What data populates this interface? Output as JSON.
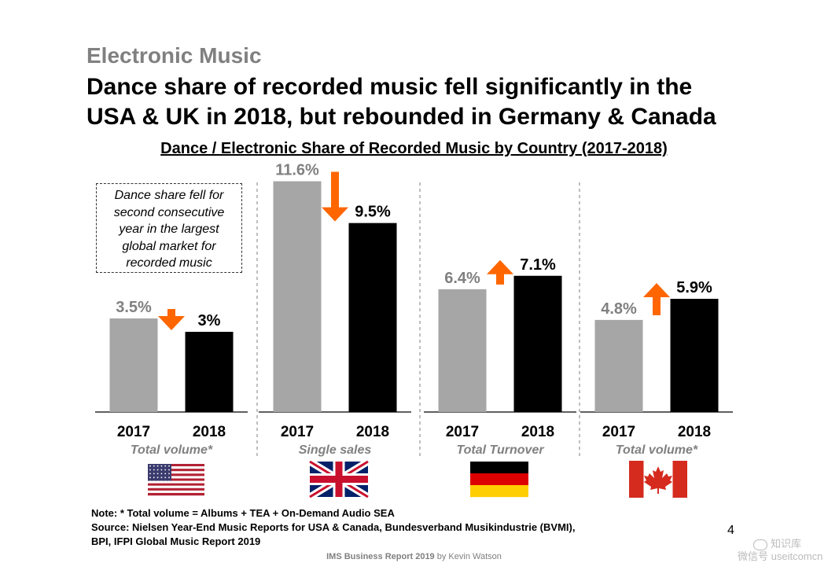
{
  "section_title": "Electronic Music",
  "headline_line1": "Dance share of recorded music fell significantly in the",
  "headline_line2": "USA & UK in 2018, but rebounded in Germany & Canada",
  "annotation_lines": [
    "Dance share fell for",
    "second consecutive",
    "year in the largest",
    "global market for",
    "recorded music"
  ],
  "note": "Note: * Total volume = Albums + TEA + On-Demand Audio SEA",
  "source_line1": "Source: Nielsen Year-End Music Reports for USA & Canada, Bundesverband Musikindustrie (BVMI),",
  "source_line2": "BPI, IFPI Global Music Report 2019",
  "page_number": "4",
  "footer": {
    "bold": "IMS Business Report 2019",
    "rest": " by Kevin Watson"
  },
  "watermark": {
    "line1": "知识库",
    "line2": "微信号 useitcomcn"
  },
  "colors": {
    "bar_2017": "#a6a6a6",
    "bar_2018": "#000000",
    "arrow": "#ff6600",
    "label_2017": "#808080",
    "metric_label": "#808080"
  },
  "chart_data": {
    "type": "bar",
    "title": "Dance / Electronic Share of Recorded Music by Country (2017-2018)",
    "categories": [
      "2017",
      "2018"
    ],
    "unit": "%",
    "groups": [
      {
        "flag": "usa-flag",
        "metric": "Total volume*",
        "values": [
          3.5,
          3.0
        ],
        "labels": [
          "3.5%",
          "3%"
        ],
        "trend": "down"
      },
      {
        "flag": "uk-flag",
        "metric": "Single sales",
        "values": [
          11.6,
          9.5
        ],
        "labels": [
          "11.6%",
          "9.5%"
        ],
        "trend": "down"
      },
      {
        "flag": "germany-flag",
        "metric": "Total Turnover",
        "values": [
          6.4,
          7.1
        ],
        "labels": [
          "6.4%",
          "7.1%"
        ],
        "trend": "up"
      },
      {
        "flag": "canada-flag",
        "metric": "Total volume*",
        "values": [
          4.8,
          5.9
        ],
        "labels": [
          "4.8%",
          "5.9%"
        ],
        "trend": "up"
      }
    ]
  }
}
